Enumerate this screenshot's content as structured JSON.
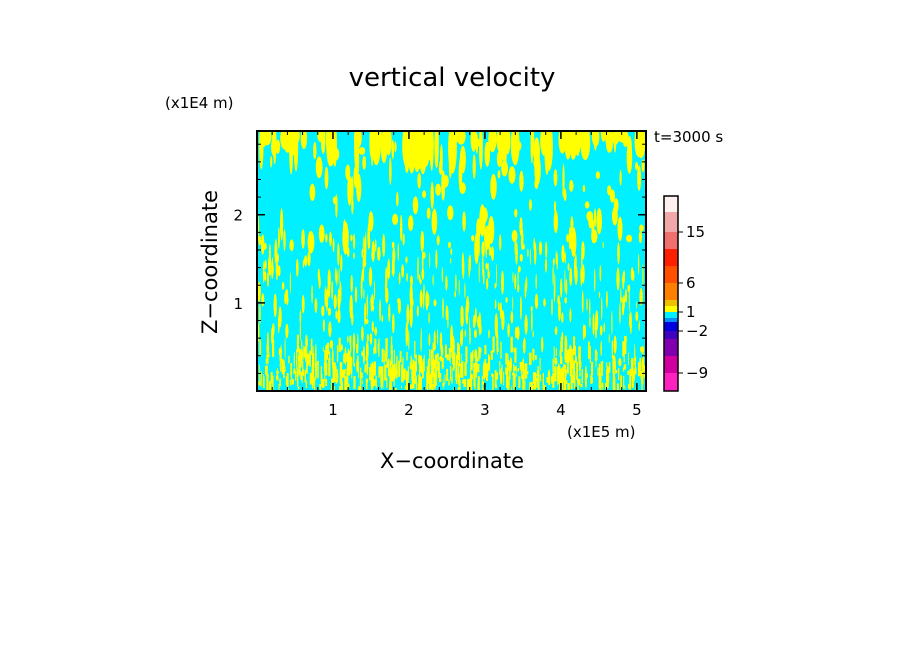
{
  "chart_data": {
    "type": "heatmap",
    "title": "vertical velocity",
    "xlabel": "X−coordinate",
    "ylabel": "Z−coordinate",
    "x_unit": "(x1E5 m)",
    "y_unit": "(x1E4 m)",
    "time_label": "t=3000 s",
    "xlim": [
      0,
      5.12
    ],
    "ylim": [
      0,
      2.95
    ],
    "x_ticks": [
      "1",
      "2",
      "3",
      "4",
      "5"
    ],
    "y_ticks": [
      "1",
      "2"
    ],
    "x_tick_values": [
      1,
      2,
      3,
      4,
      5
    ],
    "y_tick_values": [
      1,
      2
    ],
    "background_color": "#00f0ff",
    "updraft_color": "#ffff00",
    "colorbar": {
      "levels_bottom_to_top": [
        -12,
        -9,
        -6,
        -4,
        -2,
        -1,
        0,
        1,
        2,
        4,
        6,
        9,
        12,
        15,
        20,
        30
      ],
      "colors_bottom_to_top": [
        "#ff20c0",
        "#d000a0",
        "#8000b0",
        "#4000c0",
        "#0000e0",
        "#0090ff",
        "#00f0ff",
        "#ffff00",
        "#f0c000",
        "#ff8000",
        "#ff5000",
        "#ff2000",
        "#f07070",
        "#f0a8a8",
        "#fff0f0"
      ],
      "labels": [
        "15",
        "6",
        "1",
        "−2",
        "−9"
      ],
      "label_values": [
        15,
        6,
        1,
        -2,
        -9
      ]
    }
  }
}
